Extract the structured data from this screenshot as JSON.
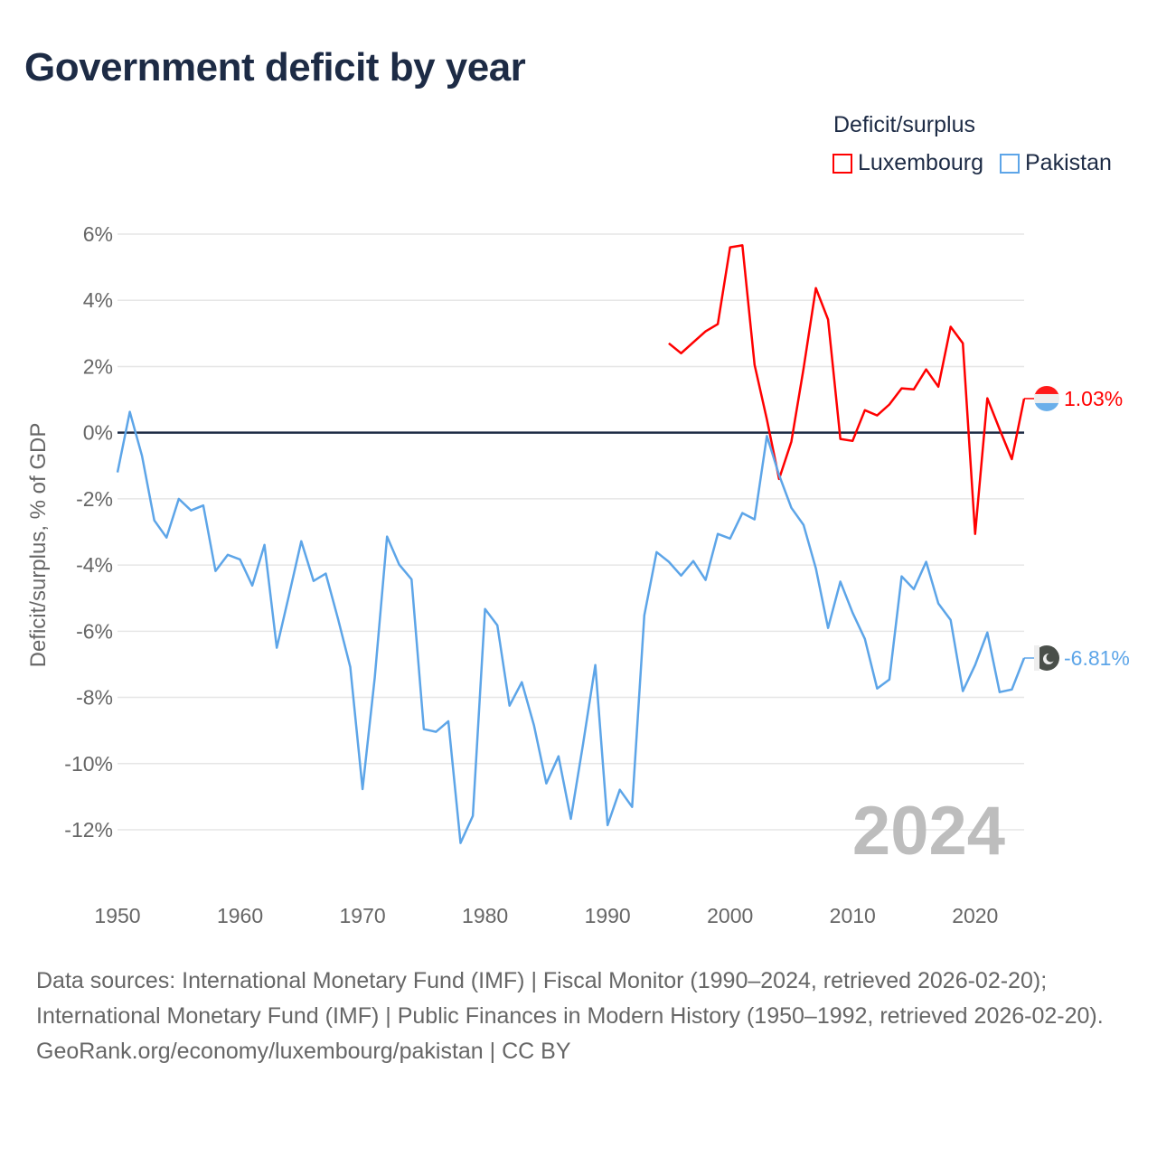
{
  "title": "Government deficit by year",
  "legend": {
    "title": "Deficit/surplus",
    "items": [
      {
        "name": "Luxembourg",
        "color": "#ff0000"
      },
      {
        "name": "Pakistan",
        "color": "#5da5e8"
      }
    ]
  },
  "year_watermark": "2024",
  "footer": {
    "sources": "Data sources: International Monetary Fund (IMF) | Fiscal Monitor (1990–2024, retrieved 2026-02-20); International Monetary Fund (IMF) | Public Finances in Modern History (1950–1992, retrieved 2026-02-20).",
    "credit": "GeoRank.org/economy/luxembourg/pakistan | CC BY"
  },
  "chart_data": {
    "type": "line",
    "title": "Government deficit by year",
    "xlabel": "",
    "ylabel": "Deficit/surplus, % of GDP",
    "xlim": [
      1950,
      2024
    ],
    "ylim": [
      -12,
      6
    ],
    "x_ticks": [
      1950,
      1960,
      1970,
      1980,
      1990,
      2000,
      2010,
      2020
    ],
    "x_tick_labels": [
      "1950",
      "1960",
      "1970",
      "1980",
      "1990",
      "2000",
      "2010",
      "2020"
    ],
    "y_ticks": [
      6,
      4,
      2,
      0,
      -2,
      -4,
      -6,
      -8,
      -10,
      -12
    ],
    "y_tick_labels": [
      "6%",
      "4%",
      "2%",
      "0%",
      "-2%",
      "-4%",
      "-6%",
      "-8%",
      "-10%",
      "-12%"
    ],
    "grid": true,
    "legend_position": "top-right",
    "series": [
      {
        "name": "Luxembourg",
        "color": "#ff0000",
        "start_year": 1995,
        "end_label": "1.03%",
        "values": [
          2.7,
          2.4,
          2.73,
          3.06,
          3.28,
          5.6,
          5.66,
          2.05,
          0.4,
          -1.4,
          -0.27,
          1.94,
          4.37,
          3.42,
          -0.19,
          -0.25,
          0.68,
          0.52,
          0.85,
          1.34,
          1.31,
          1.91,
          1.39,
          3.2,
          2.7,
          -3.06,
          1.04,
          0.1,
          -0.8,
          1.03
        ]
      },
      {
        "name": "Pakistan",
        "color": "#5da5e8",
        "start_year": 1950,
        "end_label": "-6.81%",
        "values": [
          -1.2,
          0.63,
          -0.7,
          -2.65,
          -3.17,
          -2.0,
          -2.35,
          -2.2,
          -4.18,
          -3.69,
          -3.83,
          -4.62,
          -3.39,
          -6.5,
          -4.9,
          -3.28,
          -4.48,
          -4.26,
          -5.63,
          -7.08,
          -10.77,
          -7.4,
          -3.14,
          -3.99,
          -4.43,
          -8.96,
          -9.04,
          -8.72,
          -12.4,
          -11.58,
          -5.33,
          -5.82,
          -8.25,
          -7.54,
          -8.85,
          -10.6,
          -9.78,
          -11.67,
          -9.4,
          -7.02,
          -11.86,
          -10.79,
          -11.31,
          -5.52,
          -3.61,
          -3.9,
          -4.32,
          -3.88,
          -4.45,
          -3.06,
          -3.2,
          -2.43,
          -2.62,
          -0.1,
          -1.28,
          -2.27,
          -2.79,
          -4.1,
          -5.9,
          -4.5,
          -5.44,
          -6.23,
          -7.73,
          -7.46,
          -4.34,
          -4.73,
          -3.9,
          -5.16,
          -5.66,
          -7.81,
          -7.02,
          -6.04,
          -7.84,
          -7.76,
          -6.81
        ]
      }
    ]
  }
}
